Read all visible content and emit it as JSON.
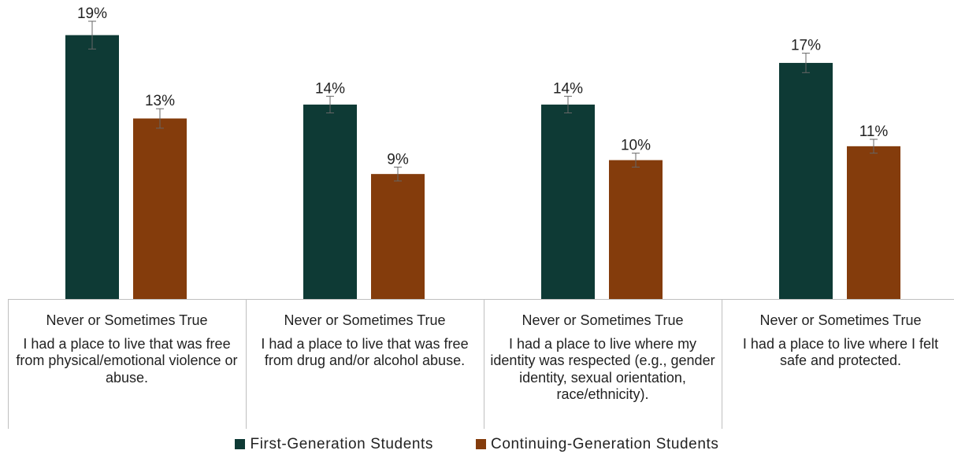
{
  "chart_data": {
    "type": "bar",
    "title": "",
    "xlabel": "",
    "ylabel": "",
    "categories": [
      {
        "line1": "Never or Sometimes True",
        "line2": "I had a place to live that was free from physical/emotional violence or abuse."
      },
      {
        "line1": "Never or Sometimes True",
        "line2": "I had a place to live that was free from drug and/or alcohol abuse."
      },
      {
        "line1": "Never or Sometimes True",
        "line2": "I had a place to live where my identity was respected (e.g., gender identity, sexual orientation, race/ethnicity)."
      },
      {
        "line1": "Never or Sometimes True",
        "line2": "I had a place to live where I felt safe and protected."
      }
    ],
    "series": [
      {
        "name": "First-Generation Students",
        "color": "#0e3a35",
        "values": [
          19,
          14,
          14,
          17
        ],
        "labels": [
          "19%",
          "14%",
          "14%",
          "17%"
        ],
        "error": [
          1.0,
          0.6,
          0.6,
          0.7
        ]
      },
      {
        "name": "Continuing-Generation Students",
        "color": "#843c0c",
        "values": [
          13,
          9,
          10,
          11
        ],
        "labels": [
          "13%",
          "9%",
          "10%",
          "11%"
        ],
        "error": [
          0.7,
          0.5,
          0.5,
          0.5
        ]
      }
    ],
    "ylim": [
      0,
      20
    ],
    "grid": false,
    "legend": "bottom"
  }
}
